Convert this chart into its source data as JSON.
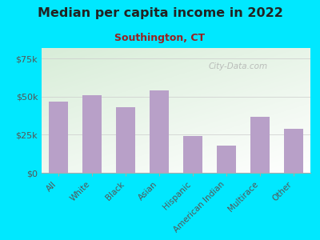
{
  "title": "Median per capita income in 2022",
  "subtitle": "Southington, CT",
  "categories": [
    "All",
    "White",
    "Black",
    "Asian",
    "Hispanic",
    "American Indian",
    "Multirace",
    "Other"
  ],
  "values": [
    47000,
    51000,
    43000,
    54000,
    24000,
    18000,
    37000,
    29000
  ],
  "bar_color": "#b8a0c8",
  "background_outer": "#00e8ff",
  "title_color": "#222222",
  "subtitle_color": "#9b2020",
  "tick_label_color": "#555555",
  "ytick_labels": [
    "$0",
    "$25k",
    "$50k",
    "$75k"
  ],
  "ytick_values": [
    0,
    25000,
    50000,
    75000
  ],
  "ylim": [
    0,
    82000
  ],
  "watermark": "City-Data.com",
  "gradient_top": "#d8edd8",
  "gradient_bottom": "#f8fff8"
}
